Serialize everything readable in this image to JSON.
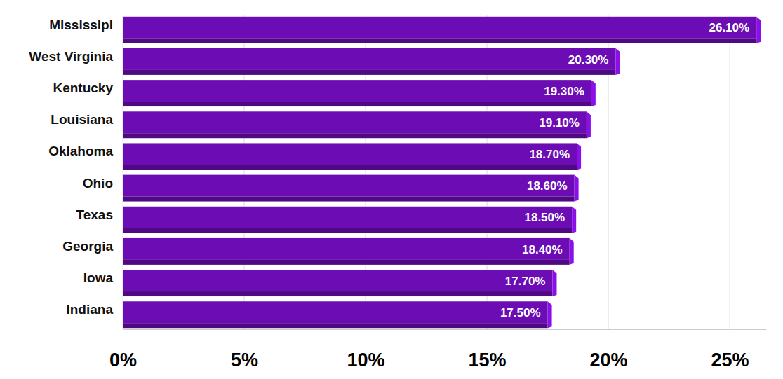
{
  "chart_data": {
    "type": "bar",
    "orientation": "horizontal",
    "categories": [
      "Mississipi",
      "West Virginia",
      "Kentucky",
      "Louisiana",
      "Oklahoma",
      "Ohio",
      "Texas",
      "Georgia",
      "Iowa",
      "Indiana"
    ],
    "values": [
      26.1,
      20.3,
      19.3,
      19.1,
      18.7,
      18.6,
      18.5,
      18.4,
      17.7,
      17.5
    ],
    "value_labels": [
      "26.10%",
      "20.30%",
      "19.30%",
      "19.10%",
      "18.70%",
      "18.60%",
      "18.50%",
      "18.40%",
      "17.70%",
      "17.50%"
    ],
    "color": "#6c0cb4",
    "xlim": [
      0,
      26.5
    ],
    "xticks": [
      {
        "value": 0,
        "label": "0%"
      },
      {
        "value": 5,
        "label": "5%"
      },
      {
        "value": 10,
        "label": "10%"
      },
      {
        "value": 15,
        "label": "15%"
      },
      {
        "value": 20,
        "label": "20%"
      },
      {
        "value": 25,
        "label": "25%"
      }
    ],
    "grid": true,
    "data_labels": true
  }
}
